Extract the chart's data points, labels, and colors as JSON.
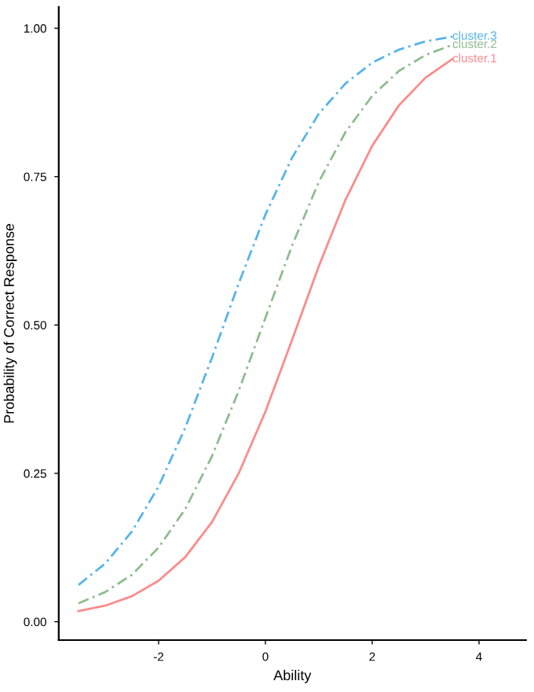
{
  "chart_data": {
    "type": "line",
    "xlabel": "Ability",
    "ylabel": "Probability of Correct Response",
    "x": [
      -3.5,
      -3,
      -2.5,
      -2,
      -1.5,
      -1,
      -0.5,
      0,
      0.5,
      1,
      1.5,
      2,
      2.5,
      3,
      3.5
    ],
    "series": [
      {
        "name": "cluster.1",
        "color": "#fb8b8b",
        "line_style": "solid",
        "values": [
          0.018,
          0.027,
          0.043,
          0.069,
          0.109,
          0.168,
          0.25,
          0.354,
          0.475,
          0.599,
          0.711,
          0.802,
          0.87,
          0.917,
          0.948
        ]
      },
      {
        "name": "cluster.2",
        "color": "#8fbc8f",
        "line_style": "dashdot",
        "values": [
          0.031,
          0.05,
          0.079,
          0.125,
          0.19,
          0.279,
          0.389,
          0.512,
          0.634,
          0.741,
          0.825,
          0.886,
          0.928,
          0.955,
          0.972
        ]
      },
      {
        "name": "cluster.3",
        "color": "#56b4e9",
        "line_style": "dashdot",
        "values": [
          0.062,
          0.098,
          0.152,
          0.228,
          0.327,
          0.445,
          0.57,
          0.686,
          0.782,
          0.856,
          0.907,
          0.942,
          0.964,
          0.978,
          0.986
        ]
      }
    ],
    "xlim": [
      -3.87,
      4.88
    ],
    "ylim": [
      -0.031,
      1.036
    ],
    "xticks": [
      -2,
      0,
      2,
      4
    ],
    "yticks": [
      {
        "value": 0,
        "label": "0.00"
      },
      {
        "value": 0.25,
        "label": "0.25"
      },
      {
        "value": 0.5,
        "label": "0.50"
      },
      {
        "value": 0.75,
        "label": "0.75"
      },
      {
        "value": 1,
        "label": "1.00"
      }
    ],
    "grid": false,
    "legend": false
  }
}
